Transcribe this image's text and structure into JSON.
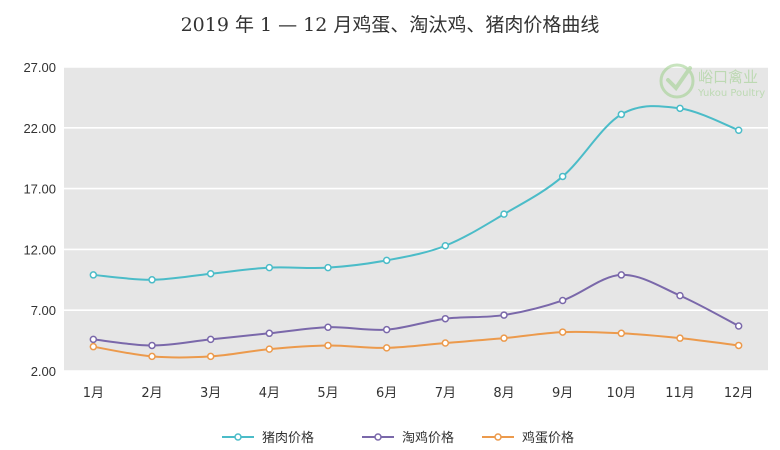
{
  "chart_data": {
    "type": "line",
    "title": "2019 年 1 — 12 月鸡蛋、淘汰鸡、猪肉价格曲线",
    "xlabel": "",
    "ylabel": "",
    "categories": [
      "1月",
      "2月",
      "3月",
      "4月",
      "5月",
      "6月",
      "7月",
      "8月",
      "9月",
      "10月",
      "11月",
      "12月"
    ],
    "ylim": [
      2,
      27
    ],
    "yticks": [
      "2.00",
      "7.00",
      "12.00",
      "17.00",
      "22.00",
      "27.00"
    ],
    "grid": true,
    "legend_position": "bottom",
    "series": [
      {
        "name": "猪肉价格",
        "color": "#4bbcc8",
        "values": [
          9.9,
          9.5,
          10.0,
          10.5,
          10.5,
          11.1,
          12.3,
          14.9,
          18.0,
          23.1,
          23.6,
          21.8
        ]
      },
      {
        "name": "淘鸡价格",
        "color": "#7a68aa",
        "values": [
          4.6,
          4.1,
          4.6,
          5.1,
          5.6,
          5.4,
          6.3,
          6.6,
          7.8,
          9.9,
          8.2,
          5.7
        ]
      },
      {
        "name": "鸡蛋价格",
        "color": "#ec9a4c",
        "values": [
          4.0,
          3.2,
          3.2,
          3.8,
          4.1,
          3.9,
          4.3,
          4.7,
          5.2,
          5.1,
          4.7,
          4.1
        ]
      }
    ]
  },
  "watermark": {
    "brand_cn": "峪口禽业",
    "brand_en": "Yukou Poultry"
  }
}
